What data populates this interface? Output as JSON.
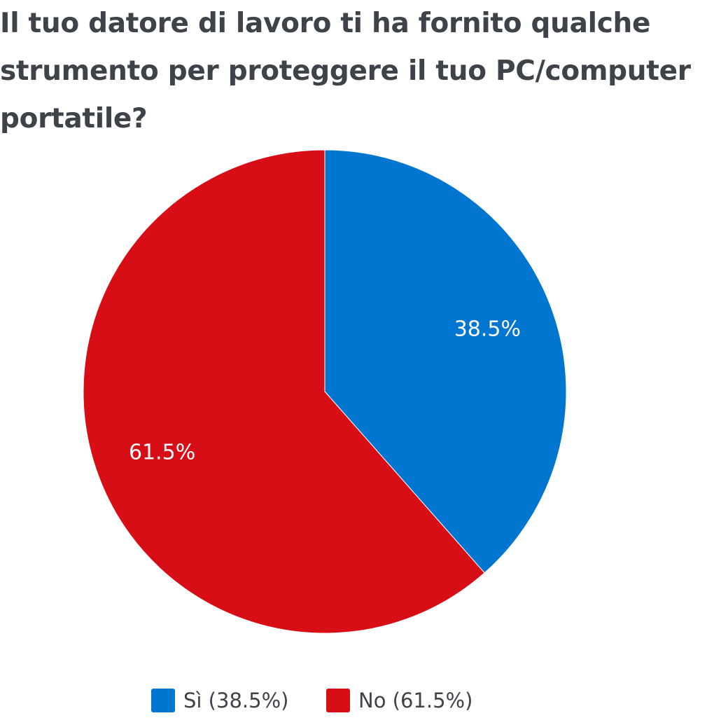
{
  "chart_data": {
    "type": "pie",
    "title": "Il tuo datore di lavoro ti ha fornito qualche strumento per proteggere il tuo PC/computer portatile?",
    "slices": [
      {
        "label": "Sì",
        "value": 38.5,
        "display": "38.5%",
        "legend": "Sì (38.5%)",
        "color": "#0076d1"
      },
      {
        "label": "No",
        "value": 61.5,
        "display": "61.5%",
        "legend": "No (61.5%)",
        "color": "#d80e16"
      }
    ],
    "legend_position": "bottom",
    "start_angle": "12 o'clock, clockwise"
  }
}
